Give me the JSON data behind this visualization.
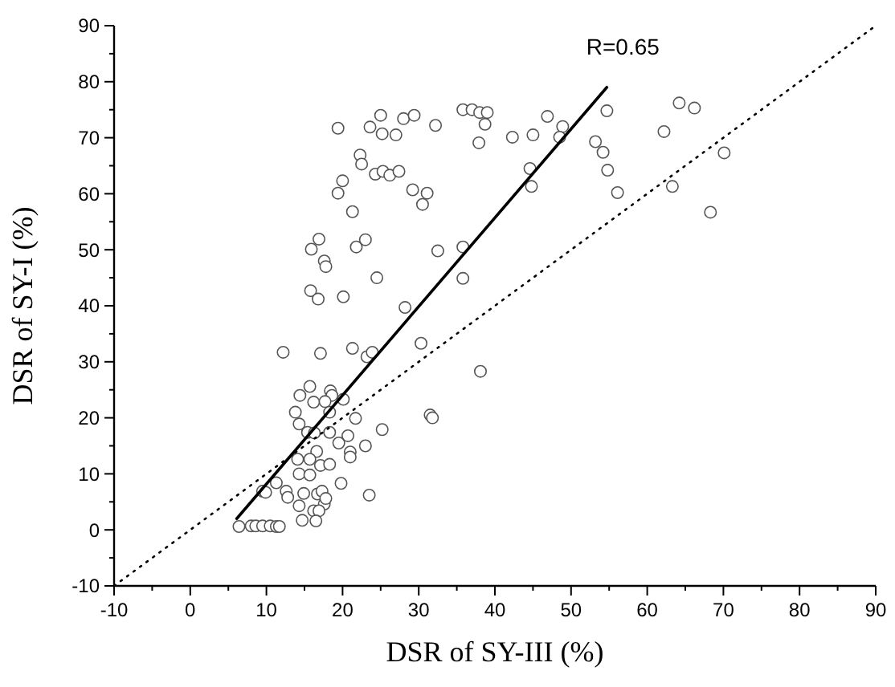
{
  "chart_data": {
    "type": "scatter",
    "xlabel": "DSR of SY-III (%)",
    "ylabel": "DSR of SY-I (%)",
    "annotations": [
      "R=0.65"
    ],
    "xlim": [
      -10,
      90
    ],
    "ylim": [
      -10,
      90
    ],
    "xticks": [
      -10,
      {
        "value": -5,
        "label": null
      },
      0,
      {
        "value": 5,
        "label": null
      },
      10,
      {
        "value": 15,
        "label": null
      },
      20,
      {
        "value": 25,
        "label": null
      },
      30,
      {
        "value": 35,
        "label": null
      },
      40,
      {
        "value": 45,
        "label": null
      },
      50,
      {
        "value": 55,
        "label": null
      },
      60,
      {
        "value": 65,
        "label": null
      },
      70,
      {
        "value": 75,
        "label": null
      },
      80,
      {
        "value": 85,
        "label": null
      },
      90
    ],
    "yticks": [
      -10,
      {
        "value": -5,
        "label": null
      },
      0,
      {
        "value": 5,
        "label": null
      },
      10,
      {
        "value": 15,
        "label": null
      },
      20,
      {
        "value": 25,
        "label": null
      },
      30,
      {
        "value": 35,
        "label": null
      },
      40,
      {
        "value": 45,
        "label": null
      },
      50,
      {
        "value": 55,
        "label": null
      },
      60,
      {
        "value": 65,
        "label": null
      },
      70,
      {
        "value": 75,
        "label": null
      },
      80,
      {
        "value": 85,
        "label": null
      },
      90
    ],
    "grid": false,
    "series": [
      {
        "type": "scatter",
        "marker": "circle",
        "color": "#555555",
        "x": [
          35.8,
          37,
          38,
          39,
          38.7,
          37.9,
          42.3,
          45,
          46.9,
          48.9,
          48.5,
          44.6,
          44.8,
          54.7,
          53.2,
          54.2,
          54.8,
          56.1,
          64.2,
          66.2,
          62.2,
          70.1,
          63.3,
          68.3,
          35.8,
          35.8,
          19.4,
          25,
          23.6,
          25.2,
          27,
          28,
          29.4,
          32.2,
          22.3,
          22.5,
          24.3,
          25.3,
          26.2,
          27.4,
          20,
          19.4,
          21.3,
          29.2,
          31.1,
          30.5,
          16.9,
          15.9,
          21.8,
          23,
          17.6,
          17.8,
          32.5,
          24.5,
          15.8,
          16.8,
          20.1,
          28.2,
          12.2,
          17.1,
          21.3,
          23.2,
          23.9,
          30.3,
          38.1,
          31.5,
          31.8,
          15.7,
          14.4,
          16.2,
          18.4,
          18.6,
          20.1,
          17.7,
          18.3,
          13.8,
          14.3,
          21.7,
          15.4,
          16.3,
          18.3,
          16.6,
          20.7,
          19.5,
          21,
          21,
          25.2,
          23,
          14.1,
          15.7,
          17.1,
          18.3,
          14.3,
          15.7,
          11.3,
          9.5,
          9.9,
          12.6,
          14.9,
          12.8,
          16.7,
          17.3,
          19.8,
          23.5,
          14.3,
          17.6,
          17.8,
          16.2,
          16.9,
          14.7,
          16.5,
          6.4,
          8,
          8.6,
          9.5,
          10.5,
          11.3,
          11.7
        ],
        "values": [
          75,
          75,
          74.5,
          74.5,
          72.4,
          69.1,
          70.1,
          70.5,
          73.8,
          72,
          70.1,
          64.5,
          61.3,
          74.8,
          69.3,
          67.4,
          64.2,
          60.2,
          76.2,
          75.3,
          71.1,
          67.3,
          61.3,
          56.7,
          50.5,
          44.9,
          71.7,
          74,
          71.9,
          70.7,
          70.5,
          73.4,
          74,
          72.2,
          66.9,
          65.3,
          63.5,
          64,
          63.3,
          64,
          62.3,
          60.1,
          56.8,
          60.7,
          60.1,
          58.1,
          51.9,
          50.1,
          50.5,
          51.8,
          48,
          47,
          49.8,
          45,
          42.7,
          41.2,
          41.6,
          39.7,
          31.7,
          31.5,
          32.4,
          30.9,
          31.7,
          33.3,
          28.3,
          20.5,
          20,
          25.6,
          24,
          22.8,
          24.8,
          24,
          23.3,
          22.9,
          21,
          21,
          18.9,
          19.9,
          17.4,
          17.3,
          17.4,
          14,
          16.8,
          15.5,
          13.9,
          13,
          17.9,
          15,
          12.6,
          12.6,
          11.5,
          11.7,
          10,
          9.8,
          8.4,
          6.9,
          6.7,
          6.9,
          6.5,
          5.8,
          6.4,
          6.9,
          8.3,
          6.2,
          4.3,
          4.6,
          5.6,
          3.4,
          3.4,
          1.7,
          1.6,
          0.6,
          0.7,
          0.7,
          0.7,
          0.7,
          0.6,
          0.6
        ]
      },
      {
        "type": "line",
        "marker": "none",
        "line_style": "solid",
        "color": "#000000",
        "x": [
          6.1,
          54.7
        ],
        "values": [
          2,
          79
        ]
      },
      {
        "type": "line",
        "marker": "none",
        "line_style": "dotted",
        "color": "#000000",
        "x": [
          -10,
          90
        ],
        "values": [
          -10,
          90
        ]
      }
    ]
  }
}
